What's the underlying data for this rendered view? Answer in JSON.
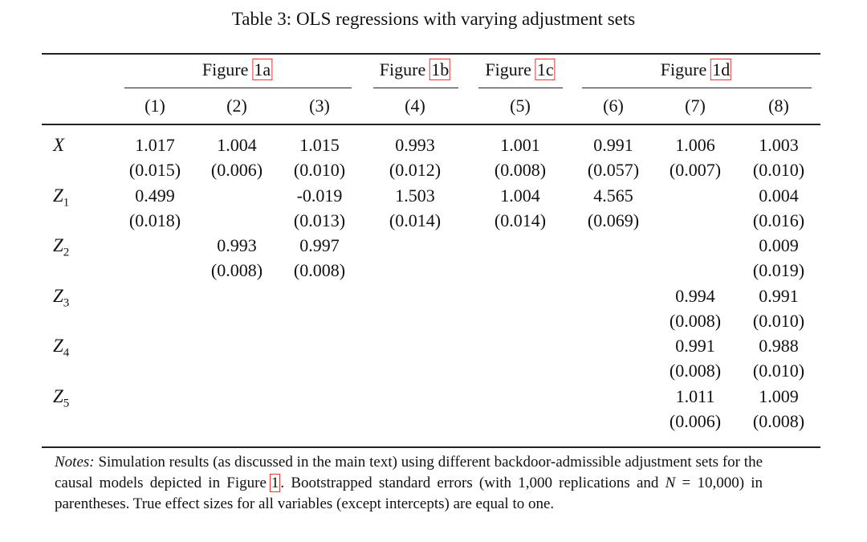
{
  "title": "Table 3: OLS regressions with varying adjustment sets",
  "groups": [
    {
      "label": "Figure",
      "ref": "1a",
      "span": [
        0,
        2
      ]
    },
    {
      "label": "Figure",
      "ref": "1b",
      "span": [
        3,
        3
      ]
    },
    {
      "label": "Figure",
      "ref": "1c",
      "span": [
        4,
        4
      ]
    },
    {
      "label": "Figure",
      "ref": "1d",
      "span": [
        5,
        7
      ]
    }
  ],
  "columns": [
    "(1)",
    "(2)",
    "(3)",
    "(4)",
    "(5)",
    "(6)",
    "(7)",
    "(8)"
  ],
  "rows": [
    {
      "name": "X",
      "sub": null,
      "coef": [
        "1.017",
        "1.004",
        "1.015",
        "0.993",
        "1.001",
        "0.991",
        "1.006",
        "1.003"
      ],
      "se": [
        "(0.015)",
        "(0.006)",
        "(0.010)",
        "(0.012)",
        "(0.008)",
        "(0.057)",
        "(0.007)",
        "(0.010)"
      ]
    },
    {
      "name": "Z",
      "sub": "1",
      "coef": [
        "0.499",
        null,
        "-0.019",
        "1.503",
        "1.004",
        "4.565",
        null,
        "0.004"
      ],
      "se": [
        "(0.018)",
        null,
        "(0.013)",
        "(0.014)",
        "(0.014)",
        "(0.069)",
        null,
        "(0.016)"
      ]
    },
    {
      "name": "Z",
      "sub": "2",
      "coef": [
        null,
        "0.993",
        "0.997",
        null,
        null,
        null,
        null,
        "0.009"
      ],
      "se": [
        null,
        "(0.008)",
        "(0.008)",
        null,
        null,
        null,
        null,
        "(0.019)"
      ]
    },
    {
      "name": "Z",
      "sub": "3",
      "coef": [
        null,
        null,
        null,
        null,
        null,
        null,
        "0.994",
        "0.991"
      ],
      "se": [
        null,
        null,
        null,
        null,
        null,
        null,
        "(0.008)",
        "(0.010)"
      ]
    },
    {
      "name": "Z",
      "sub": "4",
      "coef": [
        null,
        null,
        null,
        null,
        null,
        null,
        "0.991",
        "0.988"
      ],
      "se": [
        null,
        null,
        null,
        null,
        null,
        null,
        "(0.008)",
        "(0.010)"
      ]
    },
    {
      "name": "Z",
      "sub": "5",
      "coef": [
        null,
        null,
        null,
        null,
        null,
        null,
        "1.011",
        "1.009"
      ],
      "se": [
        null,
        null,
        null,
        null,
        null,
        null,
        "(0.006)",
        "(0.008)"
      ]
    }
  ],
  "notes": {
    "label": "Notes:",
    "text1": "Simulation results (as discussed in the main text) using different backdoor-admissible adjustment sets for the causal models depicted in Figure",
    "ref": "1",
    "text2": ". Bootstrapped standard errors (with 1,000 replications and",
    "math": "N",
    "text3": "= 10,000) in parentheses. True effect sizes for all variables (except intercepts) are equal to one."
  }
}
